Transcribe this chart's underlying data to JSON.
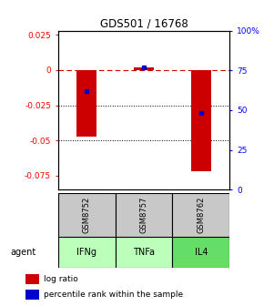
{
  "title": "GDS501 / 16768",
  "samples": [
    "GSM8752",
    "GSM8757",
    "GSM8762"
  ],
  "agents": [
    "IFNg",
    "TNFa",
    "IL4"
  ],
  "log_ratios": [
    -0.047,
    0.002,
    -0.072
  ],
  "percentile_ranks": [
    0.62,
    0.77,
    0.48
  ],
  "ylim_left": [
    -0.085,
    0.028
  ],
  "ylim_right": [
    0.0,
    1.0
  ],
  "yticks_left": [
    0.025,
    0.0,
    -0.025,
    -0.05,
    -0.075
  ],
  "yticks_right": [
    1.0,
    0.75,
    0.5,
    0.25,
    0.0
  ],
  "ytick_labels_left": [
    "0.025",
    "0",
    "-0.025",
    "-0.05",
    "-0.075"
  ],
  "ytick_labels_right": [
    "100%",
    "75",
    "50",
    "25",
    "0"
  ],
  "bar_color": "#cc0000",
  "dot_color": "#0000cc",
  "zero_line_color": "#cc0000",
  "sample_bg_color": "#c8c8c8",
  "agent_colors": [
    "#bbffbb",
    "#bbffbb",
    "#66dd66"
  ],
  "bar_width": 0.35,
  "dotted_line_values": [
    -0.025,
    -0.05
  ],
  "legend_items": [
    "log ratio",
    "percentile rank within the sample"
  ],
  "legend_colors": [
    "#cc0000",
    "#0000cc"
  ]
}
